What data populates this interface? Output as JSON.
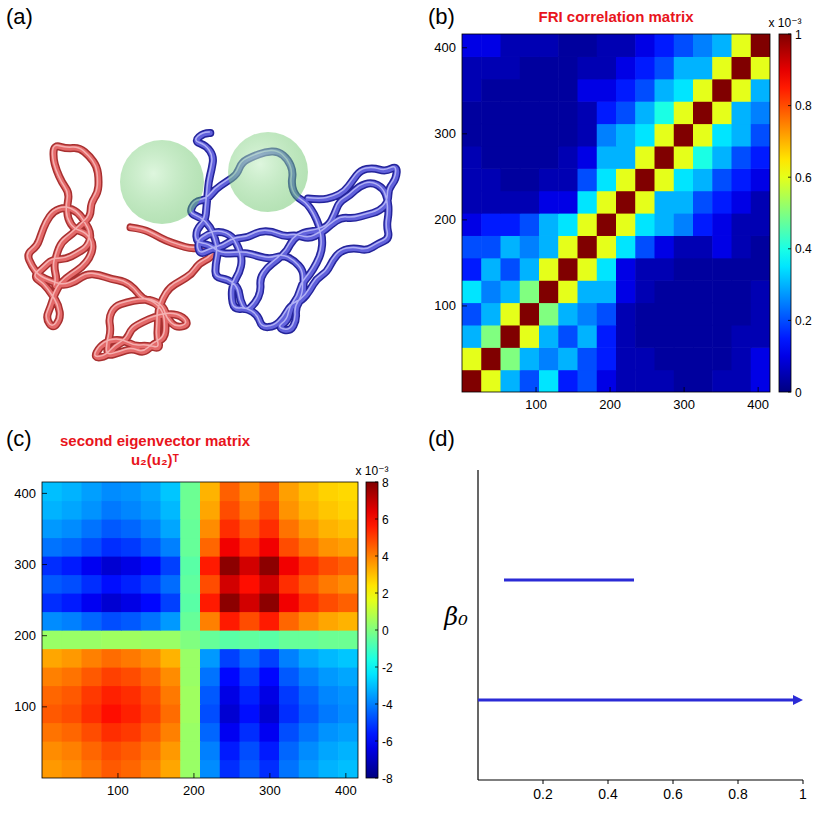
{
  "chart_data": [
    {
      "type": "image",
      "panel_label": "(a)"
    },
    {
      "type": "heatmap",
      "panel_label": "(b)",
      "title": "FRI correlation matrix",
      "xlim": [
        0,
        416
      ],
      "ylim": [
        0,
        416
      ],
      "xticks": [
        100,
        200,
        300,
        400
      ],
      "yticks": [
        100,
        200,
        300,
        400
      ],
      "cells": [
        [
          1.0,
          0.6,
          0.3,
          0.2,
          0.35,
          0.15,
          0.2,
          0.1,
          0.05,
          0.05,
          0.05,
          0.03,
          0.03,
          0.05,
          0.05,
          0.1
        ],
        [
          0.6,
          1.0,
          0.5,
          0.3,
          0.25,
          0.3,
          0.2,
          0.15,
          0.05,
          0.05,
          0.03,
          0.03,
          0.03,
          0.03,
          0.05,
          0.1
        ],
        [
          0.3,
          0.5,
          1.0,
          0.6,
          0.3,
          0.2,
          0.3,
          0.15,
          0.05,
          0.03,
          0.03,
          0.03,
          0.03,
          0.03,
          0.05,
          0.05
        ],
        [
          0.2,
          0.3,
          0.6,
          1.0,
          0.5,
          0.3,
          0.25,
          0.2,
          0.05,
          0.03,
          0.03,
          0.03,
          0.03,
          0.03,
          0.03,
          0.05
        ],
        [
          0.35,
          0.25,
          0.3,
          0.5,
          1.0,
          0.6,
          0.3,
          0.3,
          0.1,
          0.05,
          0.03,
          0.03,
          0.03,
          0.03,
          0.03,
          0.05
        ],
        [
          0.15,
          0.3,
          0.2,
          0.3,
          0.6,
          1.0,
          0.6,
          0.35,
          0.1,
          0.05,
          0.05,
          0.03,
          0.03,
          0.03,
          0.03,
          0.03
        ],
        [
          0.2,
          0.2,
          0.3,
          0.25,
          0.3,
          0.6,
          1.0,
          0.6,
          0.35,
          0.2,
          0.1,
          0.05,
          0.05,
          0.1,
          0.05,
          0.03
        ],
        [
          0.1,
          0.15,
          0.15,
          0.2,
          0.3,
          0.35,
          0.6,
          1.0,
          0.6,
          0.35,
          0.3,
          0.25,
          0.15,
          0.1,
          0.05,
          0.05
        ],
        [
          0.05,
          0.05,
          0.05,
          0.05,
          0.1,
          0.1,
          0.35,
          0.6,
          1.0,
          0.6,
          0.3,
          0.3,
          0.2,
          0.15,
          0.1,
          0.05
        ],
        [
          0.05,
          0.05,
          0.03,
          0.03,
          0.05,
          0.05,
          0.2,
          0.35,
          0.6,
          1.0,
          0.6,
          0.35,
          0.3,
          0.2,
          0.15,
          0.1
        ],
        [
          0.05,
          0.03,
          0.03,
          0.03,
          0.03,
          0.05,
          0.1,
          0.3,
          0.3,
          0.6,
          1.0,
          0.6,
          0.4,
          0.3,
          0.2,
          0.15
        ],
        [
          0.03,
          0.03,
          0.03,
          0.03,
          0.03,
          0.03,
          0.05,
          0.25,
          0.3,
          0.35,
          0.6,
          1.0,
          0.6,
          0.35,
          0.3,
          0.2
        ],
        [
          0.03,
          0.03,
          0.03,
          0.03,
          0.03,
          0.03,
          0.05,
          0.15,
          0.2,
          0.3,
          0.4,
          0.6,
          1.0,
          0.6,
          0.3,
          0.25
        ],
        [
          0.05,
          0.03,
          0.03,
          0.03,
          0.03,
          0.03,
          0.1,
          0.1,
          0.15,
          0.2,
          0.3,
          0.35,
          0.6,
          1.0,
          0.6,
          0.3
        ],
        [
          0.05,
          0.05,
          0.05,
          0.03,
          0.03,
          0.03,
          0.05,
          0.05,
          0.1,
          0.15,
          0.2,
          0.3,
          0.3,
          0.6,
          1.0,
          0.6
        ],
        [
          0.1,
          0.1,
          0.05,
          0.05,
          0.05,
          0.03,
          0.03,
          0.05,
          0.05,
          0.1,
          0.15,
          0.2,
          0.25,
          0.3,
          0.6,
          1.0
        ]
      ],
      "colorbar_range": [
        0,
        1
      ],
      "colorbar_ticks": [
        0,
        0.2,
        0.4,
        0.6,
        0.8,
        1
      ],
      "colorbar_label": "x 10⁻³"
    },
    {
      "type": "heatmap",
      "panel_label": "(c)",
      "title": "second eigenvector matrix u₂(u₂)ᵀ",
      "xlim": [
        0,
        416
      ],
      "ylim": [
        0,
        416
      ],
      "xticks": [
        100,
        200,
        300,
        400
      ],
      "yticks": [
        100,
        200,
        300,
        400
      ],
      "cells": [
        [
          3.6,
          3.8,
          4.2,
          4.6,
          4.4,
          4.0,
          3.4,
          0.4,
          -3.8,
          -5.3,
          -4.6,
          -5.3,
          -4.2,
          -3.6,
          -3.2,
          -3.0
        ],
        [
          3.8,
          4.0,
          4.4,
          4.8,
          4.6,
          4.2,
          3.6,
          0.4,
          -4.0,
          -5.6,
          -4.8,
          -5.6,
          -4.4,
          -3.8,
          -3.4,
          -3.2
        ],
        [
          4.2,
          4.4,
          4.8,
          5.3,
          5.1,
          4.6,
          4.0,
          0.4,
          -4.4,
          -6.2,
          -5.3,
          -6.2,
          -4.8,
          -4.2,
          -3.7,
          -3.5
        ],
        [
          4.6,
          4.8,
          5.3,
          5.8,
          5.5,
          5.0,
          4.3,
          0.5,
          -4.8,
          -6.7,
          -5.8,
          -6.7,
          -5.3,
          -4.6,
          -4.1,
          -3.8
        ],
        [
          4.4,
          4.6,
          5.1,
          5.5,
          5.3,
          4.8,
          4.1,
          0.5,
          -4.6,
          -6.4,
          -5.5,
          -6.4,
          -5.1,
          -4.4,
          -3.9,
          -3.7
        ],
        [
          4.0,
          4.2,
          4.6,
          5.0,
          4.8,
          4.4,
          3.8,
          0.4,
          -4.2,
          -5.9,
          -5.0,
          -5.9,
          -4.6,
          -4.0,
          -3.6,
          -3.4
        ],
        [
          3.4,
          3.6,
          4.0,
          4.3,
          4.1,
          3.8,
          3.2,
          0.4,
          -3.6,
          -5.0,
          -4.3,
          -5.0,
          -4.0,
          -3.4,
          -3.1,
          -2.9
        ],
        [
          0.4,
          0.4,
          0.4,
          0.5,
          0.5,
          0.4,
          0.4,
          0.0,
          -0.4,
          -0.6,
          -0.5,
          -0.6,
          -0.4,
          -0.4,
          -0.3,
          -0.3
        ],
        [
          -3.8,
          -4.0,
          -4.4,
          -4.8,
          -4.6,
          -4.2,
          -3.6,
          -0.4,
          4.0,
          5.6,
          4.8,
          5.6,
          4.4,
          3.8,
          3.4,
          3.2
        ],
        [
          -5.3,
          -5.6,
          -6.2,
          -6.7,
          -6.4,
          -5.9,
          -5.0,
          -0.6,
          5.6,
          7.8,
          6.7,
          7.8,
          6.2,
          5.3,
          4.8,
          4.5
        ],
        [
          -4.6,
          -4.8,
          -5.3,
          -5.8,
          -5.5,
          -5.0,
          -4.3,
          -0.5,
          4.8,
          6.7,
          5.8,
          6.7,
          5.3,
          4.6,
          4.1,
          3.8
        ],
        [
          -5.3,
          -5.6,
          -6.2,
          -6.7,
          -6.4,
          -5.9,
          -5.0,
          -0.6,
          5.6,
          7.8,
          6.7,
          7.8,
          6.2,
          5.3,
          4.8,
          4.5
        ],
        [
          -4.2,
          -4.4,
          -4.8,
          -5.3,
          -5.1,
          -4.6,
          -4.0,
          -0.4,
          4.4,
          6.2,
          5.3,
          6.2,
          4.8,
          4.2,
          3.7,
          3.5
        ],
        [
          -3.6,
          -3.8,
          -4.2,
          -4.6,
          -4.4,
          -4.0,
          -3.4,
          -0.4,
          3.8,
          5.3,
          4.6,
          5.3,
          4.2,
          3.6,
          3.2,
          3.0
        ],
        [
          -3.2,
          -3.4,
          -3.7,
          -4.1,
          -3.9,
          -3.6,
          -3.1,
          -0.3,
          3.4,
          4.8,
          4.1,
          4.8,
          3.7,
          3.2,
          2.9,
          2.7
        ],
        [
          -3.0,
          -3.2,
          -3.5,
          -3.8,
          -3.7,
          -3.4,
          -2.9,
          -0.3,
          3.2,
          4.5,
          3.8,
          4.5,
          3.5,
          3.0,
          2.7,
          2.6
        ]
      ],
      "colorbar_range": [
        -8,
        8
      ],
      "colorbar_ticks": [
        -8,
        -6,
        -4,
        -2,
        0,
        2,
        4,
        6,
        8
      ],
      "colorbar_label": "x 10⁻³"
    },
    {
      "type": "barcode",
      "panel_label": "(d)",
      "ylabel": "β₀",
      "xlim": [
        0,
        1
      ],
      "xticks": [
        0.2,
        0.4,
        0.6,
        0.8,
        1
      ],
      "bars": [
        {
          "start": 0.08,
          "end": 0.48
        },
        {
          "start": 0,
          "end": null
        }
      ],
      "color": "#2b2bd6",
      "tick_labels": "x"
    }
  ]
}
